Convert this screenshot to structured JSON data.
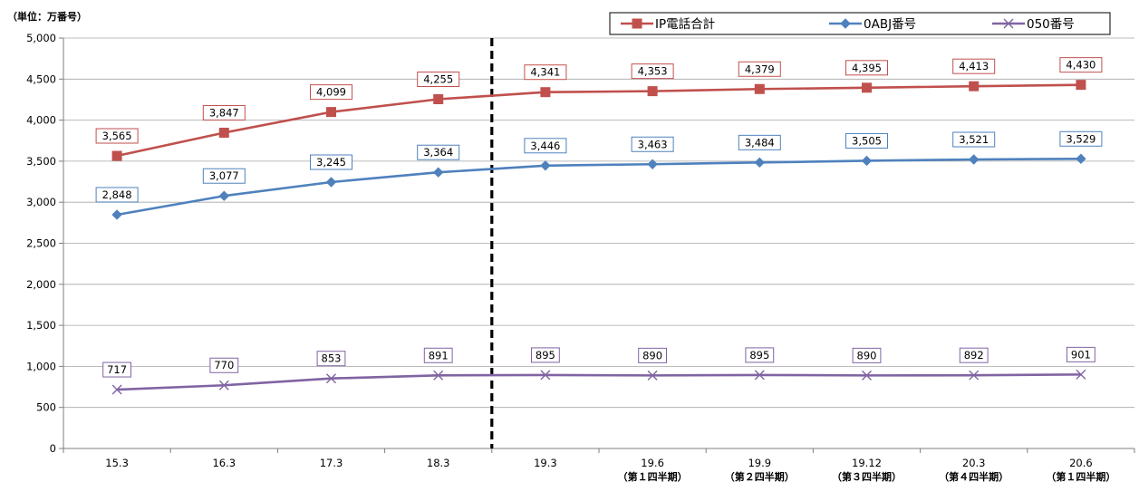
{
  "chart_data": {
    "type": "line",
    "unit_label": "（単位：万番号）",
    "categories": [
      "15.3",
      "16.3",
      "17.3",
      "18.3",
      "19.3",
      "19.6",
      "19.9",
      "19.12",
      "20.3",
      "20.6"
    ],
    "category_sublabels": [
      "",
      "",
      "",
      "",
      "",
      "（第１四半期）",
      "（第２四半期）",
      "（第３四半期）",
      "（第４四半期）",
      "（第１四半期）"
    ],
    "ylim": [
      0,
      5000
    ],
    "yticks": [
      0,
      500,
      1000,
      1500,
      2000,
      2500,
      3000,
      3500,
      4000,
      4500,
      5000
    ],
    "ytick_labels": [
      "0",
      "500",
      "1,000",
      "1,500",
      "2,000",
      "2,500",
      "3,000",
      "3,500",
      "4,000",
      "4,500",
      "5,000"
    ],
    "grid": true,
    "legend_position": "top-right",
    "divider_after_category": "18.3",
    "series": [
      {
        "name": "IP電話合計",
        "color": "#C0504D",
        "marker": "square",
        "values": [
          3565,
          3847,
          4099,
          4255,
          4341,
          4353,
          4379,
          4395,
          4413,
          4430
        ],
        "labels": [
          "3,565",
          "3,847",
          "4,099",
          "4,255",
          "4,341",
          "4,353",
          "4,379",
          "4,395",
          "4,413",
          "4,430"
        ]
      },
      {
        "name": "0ABJ番号",
        "color": "#4F81BD",
        "marker": "diamond",
        "values": [
          2848,
          3077,
          3245,
          3364,
          3446,
          3463,
          3484,
          3505,
          3521,
          3529
        ],
        "labels": [
          "2,848",
          "3,077",
          "3,245",
          "3,364",
          "3,446",
          "3,463",
          "3,484",
          "3,505",
          "3,521",
          "3,529"
        ]
      },
      {
        "name": "050番号",
        "color": "#8064A2",
        "marker": "cross",
        "values": [
          717,
          770,
          853,
          891,
          895,
          890,
          895,
          890,
          892,
          901
        ],
        "labels": [
          "717",
          "770",
          "853",
          "891",
          "895",
          "890",
          "895",
          "890",
          "892",
          "901"
        ]
      }
    ]
  }
}
